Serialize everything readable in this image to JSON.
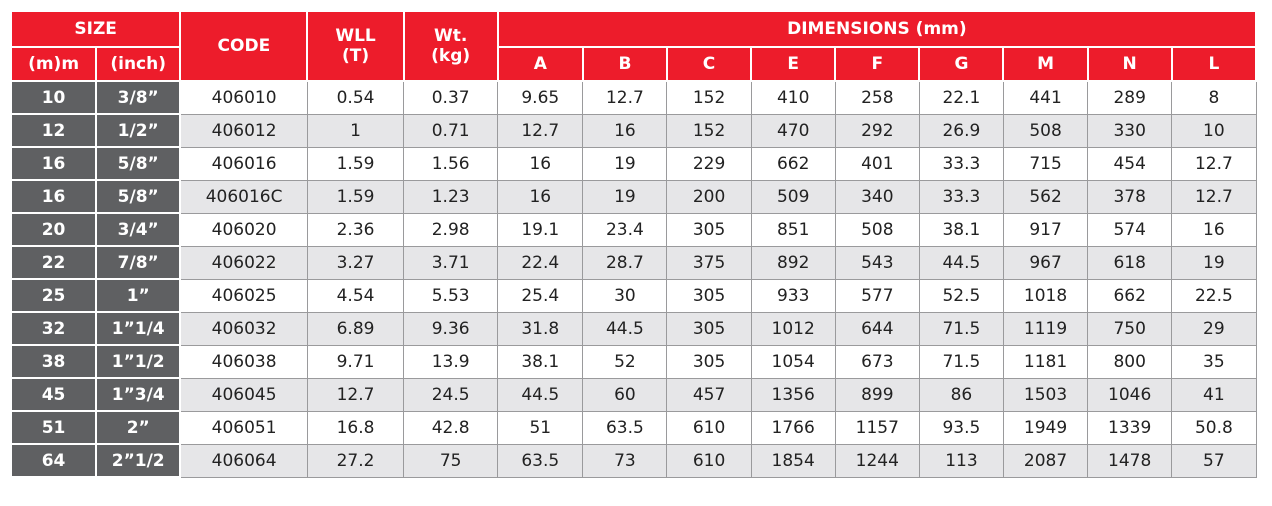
{
  "header": {
    "size": "SIZE",
    "mm": "(m)m",
    "inch": "(inch)",
    "code": "CODE",
    "wll": "WLL",
    "wll_unit": "(T)",
    "wt": "Wt.",
    "wt_unit": "(kg)",
    "dimensions": "DIMENSIONS (mm)",
    "dims": [
      "A",
      "B",
      "C",
      "E",
      "F",
      "G",
      "M",
      "N",
      "L"
    ]
  },
  "rows": [
    {
      "mm": "10",
      "inch": "3/8”",
      "code": "406010",
      "wll": "0.54",
      "wt": "0.37",
      "d": [
        "9.65",
        "12.7",
        "152",
        "410",
        "258",
        "22.1",
        "441",
        "289",
        "8"
      ]
    },
    {
      "mm": "12",
      "inch": "1/2”",
      "code": "406012",
      "wll": "1",
      "wt": "0.71",
      "d": [
        "12.7",
        "16",
        "152",
        "470",
        "292",
        "26.9",
        "508",
        "330",
        "10"
      ]
    },
    {
      "mm": "16",
      "inch": "5/8”",
      "code": "406016",
      "wll": "1.59",
      "wt": "1.56",
      "d": [
        "16",
        "19",
        "229",
        "662",
        "401",
        "33.3",
        "715",
        "454",
        "12.7"
      ]
    },
    {
      "mm": "16",
      "inch": "5/8”",
      "code": "406016C",
      "wll": "1.59",
      "wt": "1.23",
      "d": [
        "16",
        "19",
        "200",
        "509",
        "340",
        "33.3",
        "562",
        "378",
        "12.7"
      ]
    },
    {
      "mm": "20",
      "inch": "3/4”",
      "code": "406020",
      "wll": "2.36",
      "wt": "2.98",
      "d": [
        "19.1",
        "23.4",
        "305",
        "851",
        "508",
        "38.1",
        "917",
        "574",
        "16"
      ]
    },
    {
      "mm": "22",
      "inch": "7/8”",
      "code": "406022",
      "wll": "3.27",
      "wt": "3.71",
      "d": [
        "22.4",
        "28.7",
        "375",
        "892",
        "543",
        "44.5",
        "967",
        "618",
        "19"
      ]
    },
    {
      "mm": "25",
      "inch": "1”",
      "code": "406025",
      "wll": "4.54",
      "wt": "5.53",
      "d": [
        "25.4",
        "30",
        "305",
        "933",
        "577",
        "52.5",
        "1018",
        "662",
        "22.5"
      ]
    },
    {
      "mm": "32",
      "inch": "1”1/4",
      "code": "406032",
      "wll": "6.89",
      "wt": "9.36",
      "d": [
        "31.8",
        "44.5",
        "305",
        "1012",
        "644",
        "71.5",
        "1119",
        "750",
        "29"
      ]
    },
    {
      "mm": "38",
      "inch": "1”1/2",
      "code": "406038",
      "wll": "9.71",
      "wt": "13.9",
      "d": [
        "38.1",
        "52",
        "305",
        "1054",
        "673",
        "71.5",
        "1181",
        "800",
        "35"
      ]
    },
    {
      "mm": "45",
      "inch": "1”3/4",
      "code": "406045",
      "wll": "12.7",
      "wt": "24.5",
      "d": [
        "44.5",
        "60",
        "457",
        "1356",
        "899",
        "86",
        "1503",
        "1046",
        "41"
      ]
    },
    {
      "mm": "51",
      "inch": "2”",
      "code": "406051",
      "wll": "16.8",
      "wt": "42.8",
      "d": [
        "51",
        "63.5",
        "610",
        "1766",
        "1157",
        "93.5",
        "1949",
        "1339",
        "50.8"
      ]
    },
    {
      "mm": "64",
      "inch": "2”1/2",
      "code": "406064",
      "wll": "27.2",
      "wt": "75",
      "d": [
        "63.5",
        "73",
        "610",
        "1854",
        "1244",
        "113",
        "2087",
        "1478",
        "57"
      ]
    }
  ]
}
